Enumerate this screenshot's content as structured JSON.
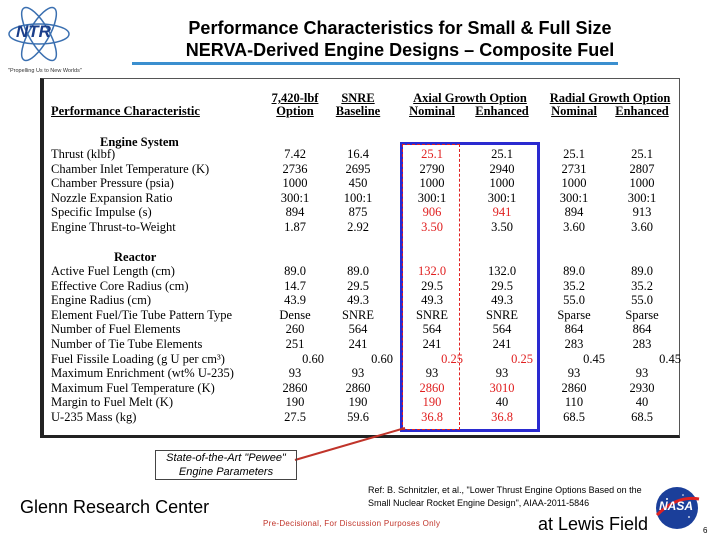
{
  "logo": {
    "text": "NTR",
    "tagline": "\"Propelling Us to New Worlds\""
  },
  "title": {
    "line1": "Performance Characteristics for Small & Full Size",
    "line2": "NERVA-Derived Engine Designs – Composite Fuel"
  },
  "table": {
    "headers": {
      "characteristic": "Performance Characteristic",
      "opt_l1": "7,420-lbf",
      "opt_l2": "Option",
      "snre_l1": "SNRE",
      "snre_l2": "Baseline",
      "axial": "Axial Growth Option",
      "axial_nom": "Nominal",
      "axial_enh": "Enhanced",
      "radial": "Radial Growth Option",
      "radial_nom": "Nominal",
      "radial_enh": "Enhanced"
    },
    "engine_section": "Engine System",
    "reactor_section": "Reactor",
    "engine_rows": [
      {
        "label": "Thrust (klbf)",
        "v": [
          "7.42",
          "16.4",
          "25.1",
          "25.1",
          "25.1",
          "25.1"
        ]
      },
      {
        "label": "Chamber Inlet Temperature (K)",
        "v": [
          "2736",
          "2695",
          "2790",
          "2940",
          "2731",
          "2807"
        ]
      },
      {
        "label": "Chamber Pressure (psia)",
        "v": [
          "1000",
          "450",
          "1000",
          "1000",
          "1000",
          "1000"
        ]
      },
      {
        "label": "Nozzle Expansion Ratio",
        "v": [
          "300:1",
          "100:1",
          "300:1",
          "300:1",
          "300:1",
          "300:1"
        ]
      },
      {
        "label": "Specific Impulse (s)",
        "v": [
          "894",
          "875",
          "906",
          "941",
          "894",
          "913"
        ]
      },
      {
        "label": "Engine Thrust-to-Weight",
        "v": [
          "1.87",
          "2.92",
          "3.50",
          "3.50",
          "3.60",
          "3.60"
        ]
      }
    ],
    "reactor_rows": [
      {
        "label": "Active Fuel Length (cm)",
        "v": [
          "89.0",
          "89.0",
          "132.0",
          "132.0",
          "89.0",
          "89.0"
        ]
      },
      {
        "label": "Effective Core Radius (cm)",
        "v": [
          "14.7",
          "29.5",
          "29.5",
          "29.5",
          "35.2",
          "35.2"
        ]
      },
      {
        "label": "Engine Radius (cm)",
        "v": [
          "43.9",
          "49.3",
          "49.3",
          "49.3",
          "55.0",
          "55.0"
        ]
      },
      {
        "label": "Element  Fuel/Tie Tube Pattern Type",
        "v": [
          "Dense",
          "SNRE",
          "SNRE",
          "SNRE",
          "Sparse",
          "Sparse"
        ]
      },
      {
        "label": "Number of Fuel Elements",
        "v": [
          "260",
          "564",
          "564",
          "564",
          "864",
          "864"
        ]
      },
      {
        "label": "Number of Tie Tube Elements",
        "v": [
          "251",
          "241",
          "241",
          "241",
          "283",
          "283"
        ]
      },
      {
        "label": "Fuel Fissile Loading (g U per cm³)",
        "v": [
          "0.60",
          "0.60",
          "0.25",
          "0.25",
          "0.45",
          "0.45"
        ]
      },
      {
        "label": "Maximum Enrichment (wt% U-235)",
        "v": [
          "93",
          "93",
          "93",
          "93",
          "93",
          "93"
        ]
      },
      {
        "label": "Maximum Fuel Temperature (K)",
        "v": [
          "2860",
          "2860",
          "2860",
          "3010",
          "2860",
          "2930"
        ]
      },
      {
        "label": "Margin to Fuel Melt (K)",
        "v": [
          "190",
          "190",
          "190",
          "40",
          "110",
          "40"
        ]
      },
      {
        "label": "U-235 Mass (kg)",
        "v": [
          "27.5",
          "59.6",
          "36.8",
          "36.8",
          "68.5",
          "68.5"
        ]
      }
    ]
  },
  "callout": "State-of-the-Art \"Pewee\" Engine Parameters",
  "footer": {
    "left": "Glenn Research Center",
    "ref": "Ref:  B. Schnitzler, et al., \"Lower Thrust Engine Options Based on the Small Nuclear Rocket Engine Design\", AIAA-2011-5846",
    "predecisional": "Pre-Decisional, For Discussion Purposes Only",
    "right": "at Lewis Field",
    "nasa": "NASA",
    "page": "6"
  },
  "colors": {
    "title_line": "#3b8fcf",
    "highlight": "#e02020",
    "box": "#2a2ad0"
  }
}
